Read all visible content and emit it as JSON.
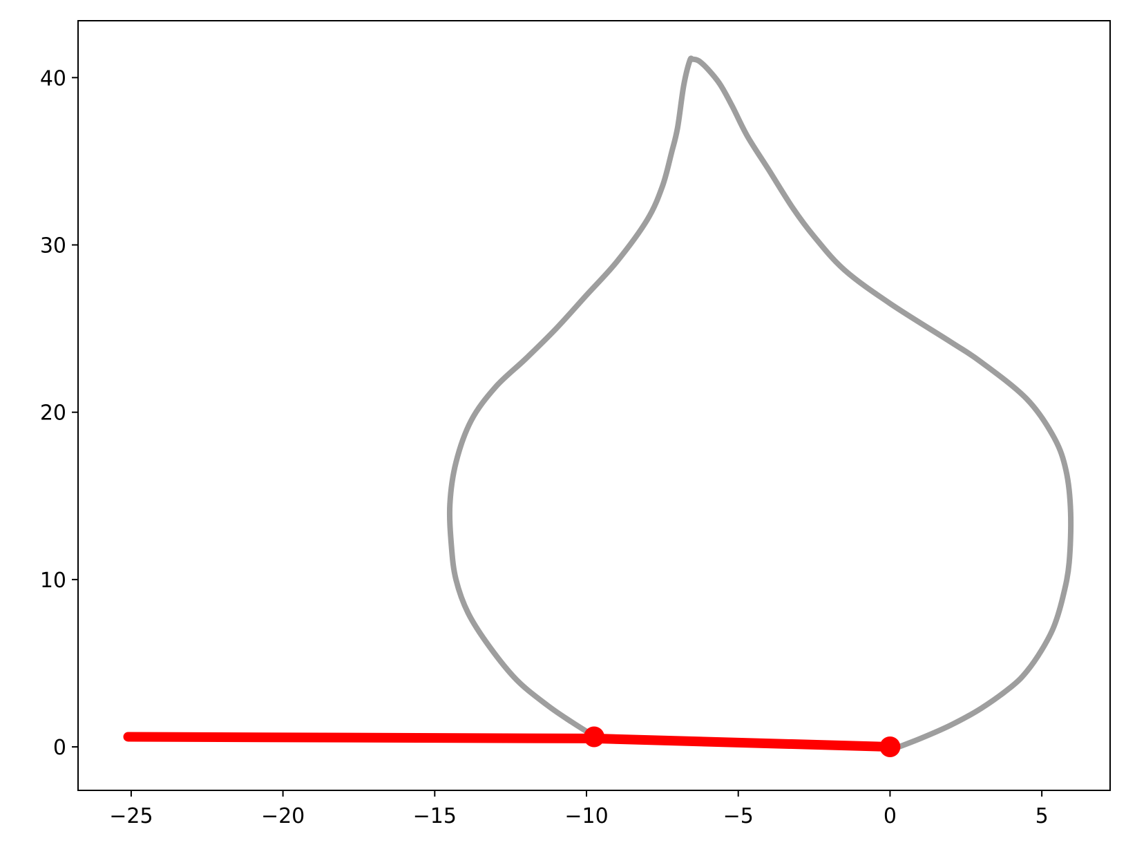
{
  "chart_data": {
    "type": "line",
    "title": "",
    "xlabel": "",
    "ylabel": "",
    "xlim": [
      -26.75,
      7.25
    ],
    "ylim": [
      -2.6,
      43.4
    ],
    "grid": false,
    "legend": "none",
    "x_ticks": [
      {
        "value": -25,
        "label": "−25"
      },
      {
        "value": -20,
        "label": "−20"
      },
      {
        "value": -15,
        "label": "−15"
      },
      {
        "value": -10,
        "label": "−10"
      },
      {
        "value": -5,
        "label": "−5"
      },
      {
        "value": 0,
        "label": "0"
      },
      {
        "value": 5,
        "label": "5"
      }
    ],
    "y_ticks": [
      {
        "value": 0,
        "label": "0"
      },
      {
        "value": 10,
        "label": "10"
      },
      {
        "value": 20,
        "label": "20"
      },
      {
        "value": 30,
        "label": "30"
      },
      {
        "value": 40,
        "label": "40"
      }
    ],
    "series": [
      {
        "color": "#9e9e9e",
        "style": "line",
        "points": [
          [
            0.0,
            -0.2
          ],
          [
            1.0,
            0.5
          ],
          [
            2.0,
            1.3
          ],
          [
            3.0,
            2.3
          ],
          [
            4.0,
            3.6
          ],
          [
            4.5,
            4.5
          ],
          [
            5.0,
            5.8
          ],
          [
            5.4,
            7.2
          ],
          [
            5.7,
            9.0
          ],
          [
            5.9,
            11.0
          ],
          [
            5.95,
            14.0
          ],
          [
            5.8,
            16.5
          ],
          [
            5.4,
            18.5
          ],
          [
            4.5,
            20.8
          ],
          [
            3.0,
            23.0
          ],
          [
            2.0,
            24.2
          ],
          [
            0.0,
            26.5
          ],
          [
            -1.5,
            28.5
          ],
          [
            -2.5,
            30.5
          ],
          [
            -3.2,
            32.2
          ],
          [
            -4.0,
            34.5
          ],
          [
            -4.7,
            36.5
          ],
          [
            -5.2,
            38.3
          ],
          [
            -5.6,
            39.6
          ],
          [
            -6.0,
            40.5
          ],
          [
            -6.3,
            41.0
          ],
          [
            -6.5,
            41.1
          ],
          [
            -6.6,
            41.0
          ],
          [
            -6.8,
            39.5
          ],
          [
            -7.0,
            37.0
          ],
          [
            -7.2,
            35.5
          ],
          [
            -7.5,
            33.5
          ],
          [
            -8.0,
            31.5
          ],
          [
            -9.0,
            29.0
          ],
          [
            -10.0,
            27.0
          ],
          [
            -11.0,
            25.0
          ],
          [
            -12.0,
            23.2
          ],
          [
            -13.0,
            21.5
          ],
          [
            -13.8,
            19.5
          ],
          [
            -14.3,
            17.0
          ],
          [
            -14.5,
            14.5
          ],
          [
            -14.45,
            12.0
          ],
          [
            -14.3,
            10.0
          ],
          [
            -13.9,
            8.0
          ],
          [
            -13.2,
            6.0
          ],
          [
            -12.3,
            4.0
          ],
          [
            -11.3,
            2.5
          ],
          [
            -10.5,
            1.5
          ],
          [
            -9.8,
            0.7
          ]
        ]
      },
      {
        "color": "#ff0000",
        "style": "line",
        "points": [
          [
            -25.1,
            0.6
          ],
          [
            -9.75,
            0.5
          ],
          [
            0.0,
            0.0
          ]
        ]
      },
      {
        "color": "#ff0000",
        "style": "markers",
        "points": [
          [
            -9.75,
            0.6
          ],
          [
            0.0,
            0.0
          ]
        ]
      }
    ]
  }
}
